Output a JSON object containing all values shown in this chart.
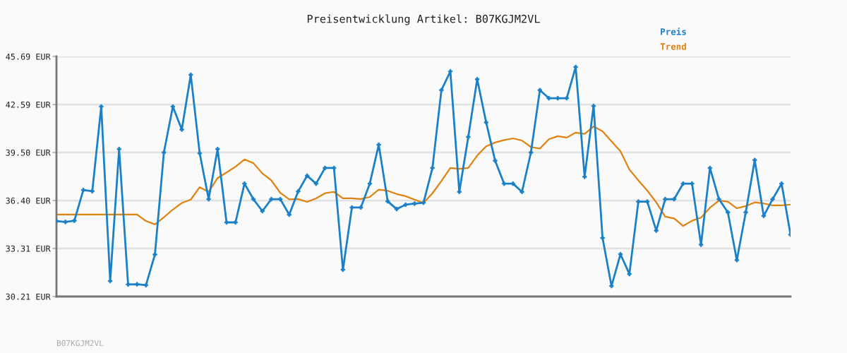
{
  "chart_data": {
    "type": "line",
    "title": "Preisentwicklung Artikel: B07KGJM2VL",
    "categories": [
      null,
      null,
      null,
      null,
      null,
      null,
      null,
      null,
      null,
      null,
      null,
      null,
      null,
      null,
      null,
      null,
      null,
      null,
      null,
      null,
      null,
      null,
      null,
      null,
      null,
      null,
      null,
      null,
      null,
      null,
      null,
      null,
      null,
      null,
      null,
      null,
      null,
      null,
      null,
      null,
      null,
      null,
      null,
      null,
      null,
      null,
      null,
      null,
      null,
      null,
      null,
      null,
      null,
      null,
      null,
      null,
      null,
      null,
      null,
      null,
      null,
      null,
      null,
      null,
      null,
      null,
      null,
      null,
      null,
      null,
      null,
      null,
      null,
      null,
      null,
      null,
      null,
      null,
      null,
      null,
      null,
      null,
      null
    ],
    "series": [
      {
        "name": "Preis",
        "color": "#1a80c8",
        "marker": "cross",
        "values": [
          35.08,
          35.02,
          35.1,
          37.08,
          37.0,
          42.46,
          31.21,
          39.72,
          30.99,
          31.0,
          30.94,
          32.92,
          39.5,
          42.46,
          40.98,
          44.51,
          39.45,
          36.49,
          39.72,
          34.99,
          34.99,
          37.49,
          36.49,
          35.72,
          36.49,
          36.49,
          35.49,
          36.99,
          38.0,
          37.49,
          38.5,
          38.5,
          31.94,
          35.95,
          35.95,
          37.49,
          40.0,
          36.35,
          35.85,
          36.13,
          36.2,
          36.26,
          38.5,
          43.52,
          44.73,
          36.96,
          40.5,
          44.22,
          41.44,
          38.97,
          37.49,
          37.49,
          36.96,
          39.5,
          43.52,
          43.0,
          43.0,
          43.0,
          45.01,
          37.93,
          42.5,
          33.99,
          30.89,
          32.94,
          31.66,
          36.33,
          36.33,
          34.46,
          36.49,
          36.49,
          37.49,
          37.49,
          33.55,
          38.5,
          36.49,
          35.64,
          32.56,
          35.64,
          39.01,
          35.41,
          36.49,
          37.49,
          34.2
        ]
      },
      {
        "name": "Trend",
        "color": "#e0820f",
        "marker": "none",
        "values": [
          35.5,
          35.5,
          35.5,
          35.5,
          35.5,
          35.5,
          35.5,
          35.5,
          35.5,
          35.5,
          35.08,
          34.86,
          35.32,
          35.82,
          36.24,
          36.46,
          37.26,
          36.96,
          37.85,
          38.21,
          38.58,
          39.05,
          38.81,
          38.15,
          37.7,
          36.9,
          36.48,
          36.5,
          36.31,
          36.54,
          36.87,
          36.96,
          36.54,
          36.54,
          36.5,
          36.63,
          37.1,
          37.03,
          36.82,
          36.68,
          36.46,
          36.24,
          36.87,
          37.66,
          38.5,
          38.45,
          38.5,
          39.3,
          39.9,
          40.14,
          40.3,
          40.41,
          40.27,
          39.85,
          39.75,
          40.35,
          40.55,
          40.46,
          40.78,
          40.7,
          41.18,
          40.86,
          40.22,
          39.58,
          38.4,
          37.7,
          37.04,
          36.28,
          35.36,
          35.25,
          34.76,
          35.1,
          35.3,
          35.94,
          36.4,
          36.33,
          35.9,
          36.04,
          36.28,
          36.21,
          36.09,
          36.09,
          36.14
        ]
      }
    ],
    "ylim": [
      30.21,
      45.69
    ],
    "yticks": [
      {
        "value": 30.21,
        "label": "30.21 EUR"
      },
      {
        "value": 33.31,
        "label": "33.31 EUR"
      },
      {
        "value": 36.4,
        "label": "36.40 EUR"
      },
      {
        "value": 39.5,
        "label": "39.50 EUR"
      },
      {
        "value": 42.59,
        "label": "42.59 EUR"
      },
      {
        "value": 45.69,
        "label": "45.69 EUR"
      }
    ],
    "grid": "y",
    "legend": "top right",
    "line_style": "solid",
    "annotations": [
      "B07KGJM2VL"
    ]
  }
}
